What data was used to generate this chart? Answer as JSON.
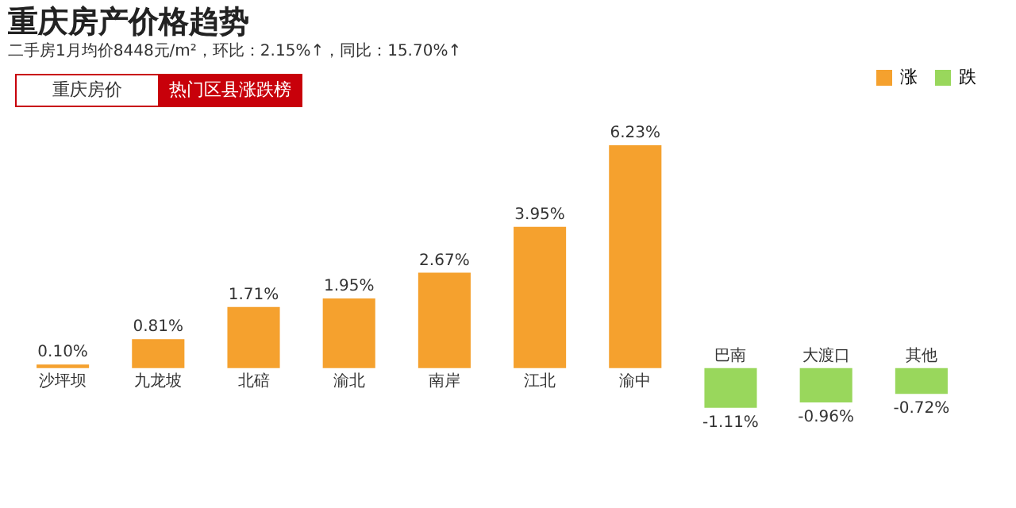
{
  "chart_data": {
    "type": "bar",
    "title": "重庆房产价格趋势",
    "subtitle": "二手房1月均价8448元/m²，环比：2.15%↑，同比：15.70%↑",
    "annotations": [
      "重庆房价",
      "热门区县涨跌榜"
    ],
    "categories": [
      "沙坪坝",
      "九龙坡",
      "北碚",
      "渝北",
      "南岸",
      "江北",
      "渝中",
      "巴南",
      "大渡口",
      "其他"
    ],
    "series": [
      {
        "name": "涨",
        "color": "#f5a12e",
        "values": [
          0.1,
          0.81,
          1.71,
          1.95,
          2.67,
          3.95,
          6.23,
          null,
          null,
          null
        ],
        "value_labels": [
          "0.10%",
          "0.81%",
          "1.71%",
          "1.95%",
          "2.67%",
          "3.95%",
          "6.23%",
          null,
          null,
          null
        ]
      },
      {
        "name": "跌",
        "color": "#99d75c",
        "values": [
          null,
          null,
          null,
          null,
          null,
          null,
          null,
          -1.11,
          -0.96,
          -0.72
        ],
        "value_labels": [
          null,
          null,
          null,
          null,
          null,
          null,
          null,
          "-1.11%",
          "-0.96%",
          "-0.72%"
        ]
      }
    ],
    "legend": "top right",
    "grid": false
  }
}
